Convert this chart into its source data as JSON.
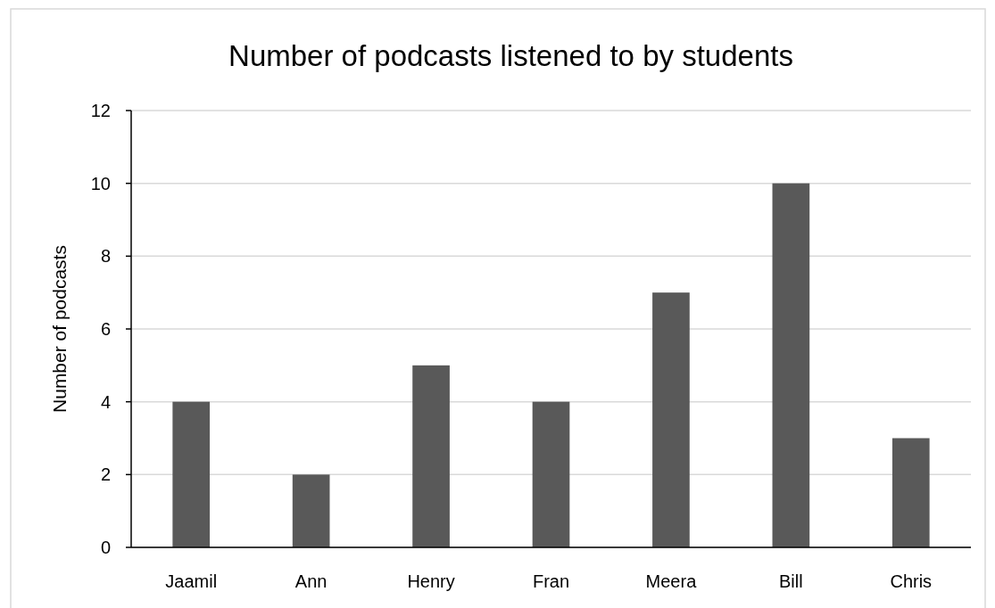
{
  "chart_data": {
    "type": "bar",
    "title": "Number of podcasts listened to by students",
    "ylabel": "Number of podcasts",
    "categories": [
      "Jaamil",
      "Ann",
      "Henry",
      "Fran",
      "Meera",
      "Bill",
      "Chris"
    ],
    "values": [
      4,
      2,
      5,
      4,
      7,
      10,
      3
    ],
    "color": "#595959",
    "ylim": [
      0,
      12
    ],
    "yticks": [
      0,
      2,
      4,
      6,
      8,
      10,
      12
    ],
    "grid": "y"
  }
}
